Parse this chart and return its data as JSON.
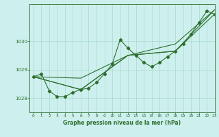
{
  "title": "Graphe pression niveau de la mer (hPa)",
  "bg_color": "#cdf0ee",
  "grid_color": "#a8d8cc",
  "line_color": "#2d6e2d",
  "xlim": [
    -0.5,
    23
  ],
  "ylim": [
    1027.5,
    1031.3
  ],
  "yticks": [
    1028,
    1029,
    1030
  ],
  "xticks": [
    0,
    1,
    2,
    3,
    4,
    5,
    6,
    7,
    8,
    9,
    10,
    11,
    12,
    13,
    14,
    15,
    16,
    17,
    18,
    19,
    20,
    21,
    22,
    23
  ],
  "series1_x": [
    0,
    1,
    2,
    3,
    4,
    5,
    6,
    7,
    8,
    9,
    10,
    11,
    12,
    13,
    14,
    15,
    16,
    17,
    18,
    19,
    20,
    21,
    22,
    23
  ],
  "series1_y": [
    1028.75,
    1028.85,
    1028.25,
    1028.05,
    1028.05,
    1028.2,
    1028.3,
    1028.35,
    1028.55,
    1028.85,
    1029.2,
    1030.05,
    1029.75,
    1029.5,
    1029.25,
    1029.1,
    1029.25,
    1029.45,
    1029.65,
    1029.9,
    1030.25,
    1030.65,
    1031.05,
    1030.95
  ],
  "series2_x": [
    0,
    6,
    12,
    18,
    23
  ],
  "series2_y": [
    1028.75,
    1028.3,
    1029.5,
    1029.65,
    1030.95
  ],
  "series3_x": [
    0,
    6,
    12,
    18,
    23
  ],
  "series3_y": [
    1028.75,
    1028.3,
    1029.5,
    1029.65,
    1031.1
  ],
  "series4_x": [
    0,
    6,
    12,
    18,
    23
  ],
  "series4_y": [
    1028.75,
    1028.7,
    1029.5,
    1029.9,
    1031.1
  ]
}
